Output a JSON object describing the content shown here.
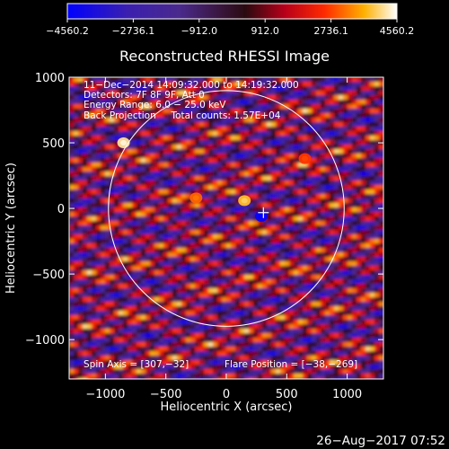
{
  "colors": {
    "background": "#000000",
    "foreground": "#ffffff",
    "colorbar_stops": [
      "#0000ff",
      "#4b2a9a",
      "#3a1640",
      "#b8001a",
      "#ff2a00",
      "#ffb000",
      "#ffffff"
    ]
  },
  "chart_data": {
    "type": "heatmap",
    "title": "Reconstructed RHESSI Image",
    "xlabel": "Heliocentric X (arcsec)",
    "ylabel": "Heliocentric Y (arcsec)",
    "xlim": [
      -1300,
      1300
    ],
    "ylim": [
      -1300,
      1000
    ],
    "x_ticks": [
      -1000,
      -500,
      0,
      500,
      1000
    ],
    "x_tick_labels": [
      "−1000",
      "−500",
      "0",
      "500",
      "1000"
    ],
    "y_ticks": [
      1000,
      500,
      0,
      -500,
      -1000
    ],
    "y_tick_labels": [
      "1000",
      "500",
      "0",
      "−500",
      "−1000"
    ],
    "grid": false,
    "colorbar": {
      "min": -4560.2,
      "max": 4560.2,
      "tick_values": [
        -4560.2,
        -2736.1,
        -912.0,
        912.0,
        2736.1,
        4560.2
      ],
      "tick_labels": [
        "−4560.2",
        "−2736.1",
        "−912.0",
        "912.0",
        "2736.1",
        "4560.2"
      ]
    },
    "solar_disk": {
      "center": [
        0,
        0
      ],
      "radius": 975
    },
    "flare_marker": {
      "x": 307,
      "y": -32
    },
    "info_lines": [
      "11−Dec−2014 14:09:32.000 to 14:19:32.000",
      "Detectors: 7F 8F 9F, Att 0",
      "Energy Range: 6.0 − 25.0 keV",
      "Back Projection     Total counts: 1.57E+04"
    ],
    "spin_axis": "Spin Axis = [307,−32]",
    "flare_position": "Flare Position = [−38,−269]",
    "features": [
      {
        "x": -850,
        "y": 500,
        "value": 4200
      },
      {
        "x": 150,
        "y": 60,
        "value": 3800
      },
      {
        "x": 290,
        "y": -60,
        "value": -4300
      },
      {
        "x": -250,
        "y": 80,
        "value": 3000
      },
      {
        "x": 650,
        "y": 380,
        "value": 2600
      }
    ]
  },
  "footer": {
    "timestamp": "26−Aug−2017 07:52"
  }
}
